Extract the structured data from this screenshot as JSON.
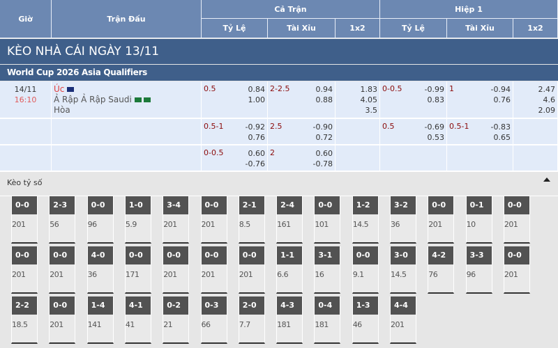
{
  "header": {
    "time": "Giờ",
    "match": "Trận Đấu",
    "full": "Cả Trận",
    "half": "Hiệp 1",
    "handicap": "Tỷ Lệ",
    "overunder": "Tài Xỉu",
    "x12": "1x2"
  },
  "title": "KÈO NHÀ CÁI NGÀY 13/11",
  "league": "World Cup 2026 Asia Qualifiers",
  "match": {
    "date": "14/11",
    "time": "16:10",
    "home": "Úc",
    "away": "Ả Rập Ả Rập Saudi",
    "draw": "Hòa"
  },
  "rows": [
    {
      "hc": "0.5",
      "hc1": "0.84",
      "hc2": "1.00",
      "ou": "2-2.5",
      "ou1": "0.94",
      "ou2": "0.88",
      "x": [
        "1.83",
        "4.05",
        "3.5"
      ],
      "h_hc": "0-0.5",
      "h_hc1": "-0.99",
      "h_hc2": "0.83",
      "h_ou": "1",
      "h_ou1": "-0.94",
      "h_ou2": "0.76",
      "hx": [
        "2.47",
        "4.6",
        "2.09"
      ]
    },
    {
      "hc": "0.5-1",
      "hc1": "-0.92",
      "hc2": "0.76",
      "ou": "2.5",
      "ou1": "-0.90",
      "ou2": "0.72",
      "x": [],
      "h_hc": "0.5",
      "h_hc1": "-0.69",
      "h_hc2": "0.53",
      "h_ou": "0.5-1",
      "h_ou1": "-0.83",
      "h_ou2": "0.65",
      "hx": []
    },
    {
      "hc": "0-0.5",
      "hc1": "0.60",
      "hc2": "-0.76",
      "ou": "2",
      "ou1": "0.60",
      "ou2": "-0.78",
      "x": [],
      "h_hc": "",
      "h_hc1": "",
      "h_hc2": "",
      "h_ou": "",
      "h_ou1": "",
      "h_ou2": "",
      "hx": []
    }
  ],
  "score_section": {
    "label": "Kèo tỷ số",
    "toggle_icon": "caret-up-icon"
  },
  "scores": [
    [
      "0-0",
      "201"
    ],
    [
      "2-3",
      "56"
    ],
    [
      "0-0",
      "96"
    ],
    [
      "1-0",
      "5.9"
    ],
    [
      "3-4",
      "201"
    ],
    [
      "0-0",
      "201"
    ],
    [
      "2-1",
      "8.5"
    ],
    [
      "2-4",
      "161"
    ],
    [
      "0-0",
      "101"
    ],
    [
      "1-2",
      "14.5"
    ],
    [
      "3-2",
      "36"
    ],
    [
      "0-0",
      "201"
    ],
    [
      "0-1",
      "10"
    ],
    [
      "0-0",
      "201"
    ],
    [
      "0-0",
      "201"
    ],
    [
      "0-0",
      "201"
    ],
    [
      "4-0",
      "36"
    ],
    [
      "0-0",
      "171"
    ],
    [
      "0-0",
      "201"
    ],
    [
      "0-0",
      "201"
    ],
    [
      "0-0",
      "201"
    ],
    [
      "1-1",
      "6.6"
    ],
    [
      "3-1",
      "16"
    ],
    [
      "0-0",
      "9.1"
    ],
    [
      "3-0",
      "14.5"
    ],
    [
      "4-2",
      "76"
    ],
    [
      "3-3",
      "96"
    ],
    [
      "0-0",
      "201"
    ],
    [
      "2-2",
      "18.5"
    ],
    [
      "0-0",
      "201"
    ],
    [
      "1-4",
      "141"
    ],
    [
      "4-1",
      "41"
    ],
    [
      "0-2",
      "21"
    ],
    [
      "0-3",
      "66"
    ],
    [
      "2-0",
      "7.7"
    ],
    [
      "4-3",
      "181"
    ],
    [
      "0-4",
      "181"
    ],
    [
      "1-3",
      "46"
    ],
    [
      "4-4",
      "201"
    ]
  ]
}
